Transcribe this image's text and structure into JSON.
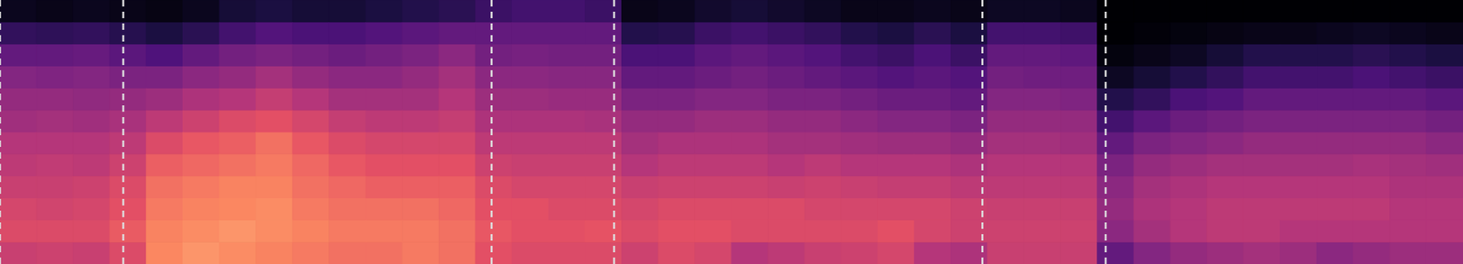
{
  "chart_data": {
    "type": "heatmap",
    "tick_labels": false,
    "xlim": [
      0,
      40
    ],
    "ylim": [
      0,
      12
    ],
    "zlim": [
      0,
      1
    ],
    "cells": [
      [
        0.55,
        0.6,
        0.58,
        0.55,
        0.52,
        0.5,
        0.45,
        0.42,
        0.38,
        0.3,
        0.18,
        0.05
      ],
      [
        0.56,
        0.6,
        0.57,
        0.55,
        0.53,
        0.5,
        0.46,
        0.42,
        0.37,
        0.3,
        0.17,
        0.04
      ],
      [
        0.55,
        0.6,
        0.58,
        0.56,
        0.52,
        0.5,
        0.45,
        0.41,
        0.38,
        0.31,
        0.18,
        0.05
      ],
      [
        0.6,
        0.65,
        0.62,
        0.6,
        0.56,
        0.52,
        0.47,
        0.42,
        0.36,
        0.28,
        0.15,
        0.04
      ],
      [
        0.75,
        0.74,
        0.72,
        0.7,
        0.66,
        0.6,
        0.52,
        0.44,
        0.36,
        0.25,
        0.12,
        0.03
      ],
      [
        0.78,
        0.76,
        0.74,
        0.72,
        0.68,
        0.64,
        0.56,
        0.48,
        0.4,
        0.3,
        0.16,
        0.05
      ],
      [
        0.76,
        0.78,
        0.75,
        0.74,
        0.7,
        0.66,
        0.6,
        0.5,
        0.42,
        0.34,
        0.22,
        0.1
      ],
      [
        0.74,
        0.76,
        0.76,
        0.74,
        0.72,
        0.7,
        0.62,
        0.54,
        0.46,
        0.36,
        0.26,
        0.12
      ],
      [
        0.72,
        0.74,
        0.72,
        0.7,
        0.68,
        0.64,
        0.58,
        0.5,
        0.42,
        0.34,
        0.24,
        0.1
      ],
      [
        0.7,
        0.72,
        0.7,
        0.68,
        0.64,
        0.6,
        0.54,
        0.46,
        0.4,
        0.32,
        0.24,
        0.1
      ],
      [
        0.7,
        0.72,
        0.7,
        0.66,
        0.62,
        0.58,
        0.52,
        0.46,
        0.4,
        0.34,
        0.26,
        0.12
      ],
      [
        0.72,
        0.72,
        0.7,
        0.66,
        0.62,
        0.58,
        0.52,
        0.46,
        0.42,
        0.36,
        0.28,
        0.14
      ],
      [
        0.7,
        0.7,
        0.68,
        0.66,
        0.62,
        0.58,
        0.54,
        0.5,
        0.46,
        0.4,
        0.3,
        0.16
      ],
      [
        0.62,
        0.64,
        0.62,
        0.6,
        0.56,
        0.52,
        0.48,
        0.44,
        0.4,
        0.34,
        0.3,
        0.2
      ],
      [
        0.6,
        0.62,
        0.62,
        0.58,
        0.55,
        0.52,
        0.48,
        0.44,
        0.4,
        0.35,
        0.3,
        0.22
      ],
      [
        0.6,
        0.62,
        0.6,
        0.58,
        0.55,
        0.52,
        0.48,
        0.43,
        0.39,
        0.34,
        0.3,
        0.22
      ],
      [
        0.6,
        0.63,
        0.6,
        0.58,
        0.55,
        0.52,
        0.47,
        0.43,
        0.39,
        0.34,
        0.3,
        0.2
      ],
      [
        0.56,
        0.6,
        0.58,
        0.55,
        0.5,
        0.46,
        0.42,
        0.36,
        0.3,
        0.24,
        0.14,
        0.04
      ],
      [
        0.6,
        0.62,
        0.6,
        0.56,
        0.52,
        0.48,
        0.42,
        0.36,
        0.3,
        0.24,
        0.15,
        0.05
      ],
      [
        0.58,
        0.62,
        0.6,
        0.56,
        0.52,
        0.48,
        0.44,
        0.38,
        0.32,
        0.28,
        0.2,
        0.08
      ],
      [
        0.5,
        0.6,
        0.6,
        0.56,
        0.52,
        0.48,
        0.44,
        0.38,
        0.34,
        0.3,
        0.22,
        0.1
      ],
      [
        0.52,
        0.6,
        0.6,
        0.55,
        0.5,
        0.46,
        0.42,
        0.36,
        0.32,
        0.28,
        0.2,
        0.08
      ],
      [
        0.55,
        0.6,
        0.58,
        0.56,
        0.52,
        0.46,
        0.42,
        0.36,
        0.3,
        0.26,
        0.18,
        0.06
      ],
      [
        0.56,
        0.6,
        0.58,
        0.55,
        0.5,
        0.45,
        0.4,
        0.34,
        0.28,
        0.22,
        0.14,
        0.04
      ],
      [
        0.58,
        0.62,
        0.58,
        0.54,
        0.5,
        0.44,
        0.38,
        0.32,
        0.26,
        0.2,
        0.12,
        0.04
      ],
      [
        0.5,
        0.58,
        0.58,
        0.54,
        0.5,
        0.44,
        0.38,
        0.32,
        0.28,
        0.24,
        0.16,
        0.05
      ],
      [
        0.48,
        0.56,
        0.56,
        0.52,
        0.48,
        0.42,
        0.36,
        0.3,
        0.26,
        0.2,
        0.12,
        0.04
      ],
      [
        0.55,
        0.56,
        0.55,
        0.52,
        0.5,
        0.46,
        0.42,
        0.38,
        0.34,
        0.3,
        0.22,
        0.06
      ],
      [
        0.55,
        0.56,
        0.55,
        0.52,
        0.5,
        0.46,
        0.42,
        0.38,
        0.33,
        0.3,
        0.22,
        0.06
      ],
      [
        0.55,
        0.56,
        0.55,
        0.52,
        0.5,
        0.45,
        0.42,
        0.37,
        0.33,
        0.29,
        0.21,
        0.05
      ],
      [
        0.3,
        0.4,
        0.42,
        0.4,
        0.36,
        0.3,
        0.22,
        0.14,
        0.06,
        0.02,
        0.0,
        0.0
      ],
      [
        0.38,
        0.46,
        0.48,
        0.46,
        0.42,
        0.36,
        0.28,
        0.18,
        0.1,
        0.04,
        0.01,
        0.0
      ],
      [
        0.42,
        0.5,
        0.5,
        0.48,
        0.44,
        0.38,
        0.32,
        0.24,
        0.14,
        0.06,
        0.02,
        0.0
      ],
      [
        0.44,
        0.52,
        0.52,
        0.5,
        0.46,
        0.4,
        0.34,
        0.26,
        0.18,
        0.1,
        0.03,
        0.0
      ],
      [
        0.46,
        0.52,
        0.52,
        0.5,
        0.46,
        0.42,
        0.36,
        0.3,
        0.22,
        0.14,
        0.04,
        0.0
      ],
      [
        0.44,
        0.5,
        0.52,
        0.5,
        0.46,
        0.42,
        0.36,
        0.3,
        0.22,
        0.14,
        0.04,
        0.0
      ],
      [
        0.4,
        0.5,
        0.52,
        0.5,
        0.46,
        0.42,
        0.36,
        0.3,
        0.22,
        0.14,
        0.05,
        0.0
      ],
      [
        0.42,
        0.5,
        0.52,
        0.5,
        0.47,
        0.42,
        0.36,
        0.3,
        0.24,
        0.16,
        0.06,
        0.0
      ],
      [
        0.44,
        0.5,
        0.5,
        0.48,
        0.46,
        0.42,
        0.36,
        0.3,
        0.22,
        0.14,
        0.05,
        0.0
      ],
      [
        0.44,
        0.5,
        0.5,
        0.48,
        0.45,
        0.4,
        0.34,
        0.28,
        0.2,
        0.12,
        0.04,
        0.0
      ]
    ],
    "vlines": {
      "x": [
        0,
        3.37,
        13.44,
        16.79,
        26.86,
        30.23
      ],
      "color": "#dddddd",
      "line_style": "dashed"
    }
  }
}
